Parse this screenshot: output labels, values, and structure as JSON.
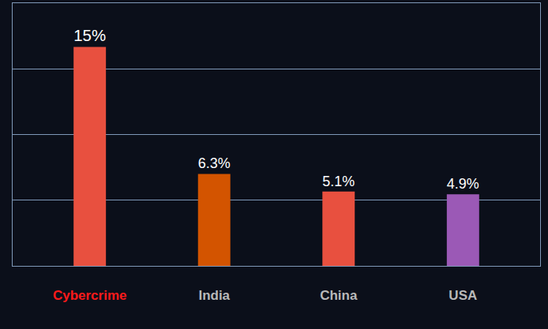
{
  "chart_data": {
    "type": "bar",
    "categories": [
      "Cybercrime",
      "India",
      "China",
      "USA"
    ],
    "values": [
      15,
      6.3,
      5.1,
      4.9
    ],
    "value_labels": [
      "15%",
      "6.3%",
      "5.1%",
      "4.9%"
    ],
    "colors": [
      "#e8503f",
      "#d35400",
      "#e8503f",
      "#9b59b6"
    ],
    "ylim": [
      0,
      18
    ],
    "yticks": [
      0,
      4.5,
      9,
      13.5,
      18
    ],
    "grid": true,
    "data_labels": true,
    "tick_labels": "x"
  }
}
